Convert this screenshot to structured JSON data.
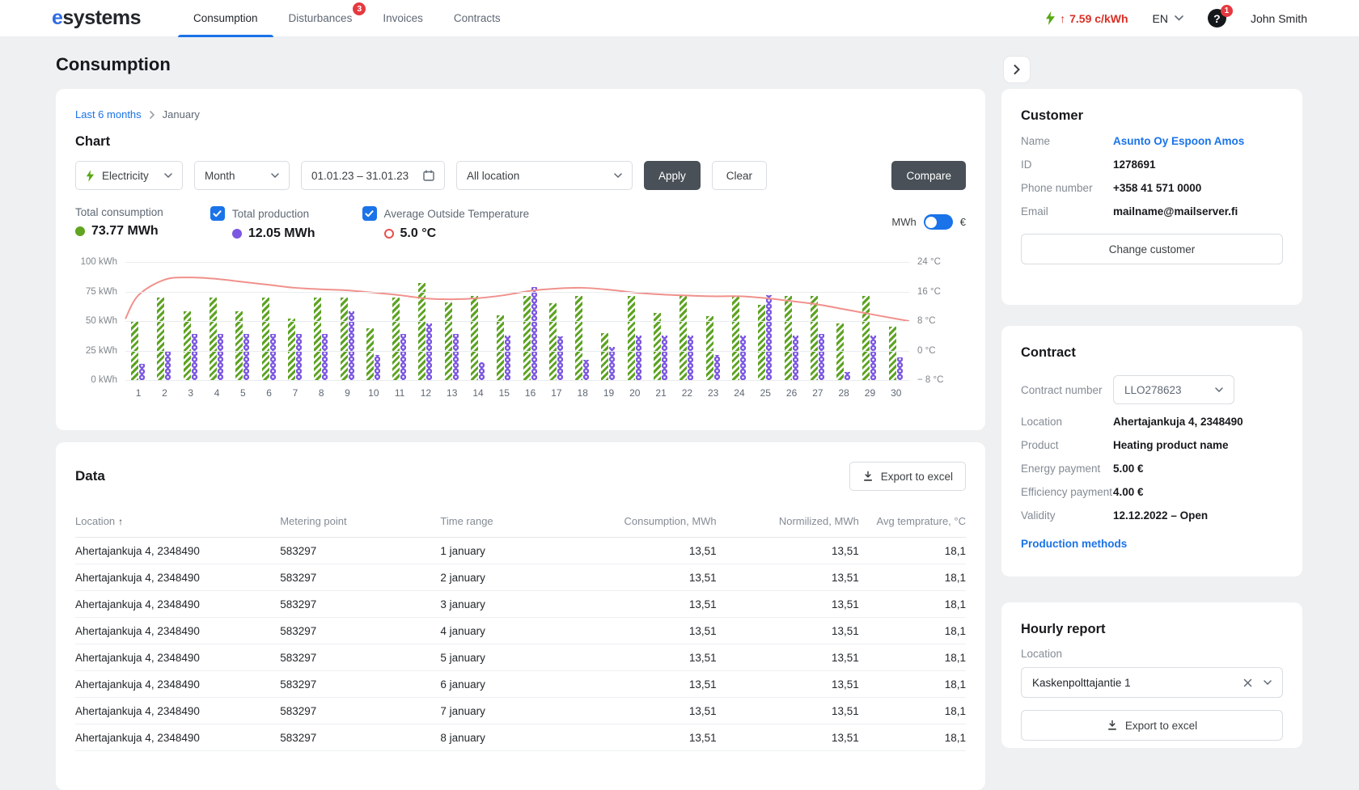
{
  "colors": {
    "accent": "#1a73e8",
    "consumption_green": "#61a41f",
    "production_purple": "#7b57e2",
    "temperature_red": "#e8504f",
    "temperature_line": "#f0918c",
    "alert_red": "#e5393f",
    "price_red": "#d93025",
    "button_dark": "#495057"
  },
  "brand": {
    "logo_first": "e",
    "logo_rest": "systems"
  },
  "nav": {
    "tabs": [
      {
        "label": "Consumption",
        "active": true
      },
      {
        "label": "Disturbances",
        "badge": "3"
      },
      {
        "label": "Invoices"
      },
      {
        "label": "Contracts"
      }
    ]
  },
  "topbar": {
    "price_arrow": "↑",
    "price": "7.59 c/kWh",
    "language": "EN",
    "help_glyph": "?",
    "help_badge": "1",
    "user": "John Smith"
  },
  "page": {
    "title": "Consumption"
  },
  "chart_card": {
    "breadcrumb": {
      "parent": "Last 6 months",
      "current": "January"
    },
    "heading": "Chart",
    "filters": {
      "type_value": "Electricity",
      "resolution_value": "Month",
      "date_range_value": "01.01.23 – 31.01.23",
      "location_value": "All location",
      "apply_label": "Apply",
      "clear_label": "Clear",
      "compare_label": "Compare"
    },
    "legend": {
      "items": [
        {
          "label": "Total consumption",
          "value": "73.77 MWh",
          "checkbox": false,
          "marker": "dot-green"
        },
        {
          "label": "Total production",
          "value": "12.05 MWh",
          "checkbox": true,
          "marker": "dot-purple"
        },
        {
          "label": "Average Outside Temperature",
          "value": "5.0 °C",
          "checkbox": true,
          "marker": "ring-red"
        }
      ],
      "unit_toggle": {
        "left": "MWh",
        "right": "€",
        "selected": "MWh"
      }
    }
  },
  "chart_data": {
    "type": "bar+line",
    "x": [
      1,
      2,
      3,
      4,
      5,
      6,
      7,
      8,
      9,
      10,
      11,
      12,
      13,
      14,
      15,
      16,
      17,
      18,
      19,
      20,
      21,
      22,
      23,
      24,
      25,
      26,
      27,
      28,
      29,
      30
    ],
    "series": [
      {
        "name": "Total consumption",
        "type": "bar",
        "unit": "kWh",
        "color": "#61a41f",
        "pattern": "diagonal-stripes",
        "values": [
          50,
          70,
          58,
          70,
          58,
          70,
          52,
          70,
          70,
          44,
          70,
          82,
          66,
          71,
          55,
          71,
          65,
          71,
          40,
          71,
          57,
          71,
          54,
          71,
          64,
          71,
          71,
          48,
          71,
          45
        ]
      },
      {
        "name": "Total production",
        "type": "bar",
        "unit": "kWh",
        "color": "#7b57e2",
        "pattern": "dot-chain",
        "values": [
          14,
          24,
          39,
          39,
          39,
          39,
          39,
          39,
          58,
          21,
          39,
          48,
          39,
          15,
          38,
          79,
          37,
          17,
          28,
          38,
          38,
          38,
          21,
          38,
          72,
          38,
          39,
          7,
          38,
          19
        ]
      },
      {
        "name": "Average Outside Temperature",
        "type": "line",
        "unit": "°C",
        "color": "#f0918c",
        "edge_start": 8.6,
        "values": [
          15.0,
          19.2,
          19.8,
          19.4,
          18.6,
          17.8,
          17.0,
          16.6,
          16.3,
          15.7,
          15.0,
          14.1,
          13.9,
          14.2,
          15.0,
          16.2,
          16.8,
          17.0,
          16.5,
          15.7,
          15.2,
          14.9,
          14.7,
          14.7,
          14.2,
          13.4,
          12.5,
          11.2,
          9.9,
          8.6
        ],
        "edge_end": 8.0
      }
    ],
    "y_left": {
      "labels": [
        "100 kWh",
        "75 kWh",
        "50 kWh",
        "25 kWh",
        "0 kWh"
      ],
      "min": 0,
      "max": 100
    },
    "y_right": {
      "labels": [
        "24 °C",
        "16 °C",
        "8 °C",
        "0 °C",
        "− 8 °C"
      ],
      "min": -8,
      "max": 24
    },
    "grid": true,
    "legend_position": "top"
  },
  "data_card": {
    "heading": "Data",
    "export_label": "Export to excel",
    "columns": [
      {
        "label": "Location",
        "sort": "↑"
      },
      {
        "label": "Metering point"
      },
      {
        "label": "Time range"
      },
      {
        "label": "Consumption, MWh",
        "align": "right"
      },
      {
        "label": "Normilized, MWh",
        "align": "right"
      },
      {
        "label": "Avg temprature, °C",
        "align": "right"
      }
    ],
    "rows": [
      [
        "Ahertajankuja 4, 2348490",
        "583297",
        "1 january",
        "13,51",
        "13,51",
        "18,1"
      ],
      [
        "Ahertajankuja 4, 2348490",
        "583297",
        "2 january",
        "13,51",
        "13,51",
        "18,1"
      ],
      [
        "Ahertajankuja 4, 2348490",
        "583297",
        "3 january",
        "13,51",
        "13,51",
        "18,1"
      ],
      [
        "Ahertajankuja 4, 2348490",
        "583297",
        "4 january",
        "13,51",
        "13,51",
        "18,1"
      ],
      [
        "Ahertajankuja 4, 2348490",
        "583297",
        "5 january",
        "13,51",
        "13,51",
        "18,1"
      ],
      [
        "Ahertajankuja 4, 2348490",
        "583297",
        "6 january",
        "13,51",
        "13,51",
        "18,1"
      ],
      [
        "Ahertajankuja 4, 2348490",
        "583297",
        "7 january",
        "13,51",
        "13,51",
        "18,1"
      ],
      [
        "Ahertajankuja 4, 2348490",
        "583297",
        "8 january",
        "13,51",
        "13,51",
        "18,1"
      ]
    ]
  },
  "sidebar": {
    "customer": {
      "heading": "Customer",
      "fields": [
        {
          "label": "Name",
          "value": "Asunto Oy Espoon Amos"
        },
        {
          "label": "ID",
          "value": "1278691"
        },
        {
          "label": "Phone number",
          "value": "+358 41 571 0000"
        },
        {
          "label": "Email",
          "value": "mailname@mailserver.fi"
        }
      ],
      "change_button": "Change customer"
    },
    "contract": {
      "heading": "Contract",
      "number_label": "Contract number",
      "number_value": "LLO278623",
      "fields": [
        {
          "label": "Location",
          "value": "Ahertajankuja 4, 2348490"
        },
        {
          "label": "Product",
          "value": "Heating product name"
        },
        {
          "label": "Energy payment",
          "value": "5.00 €"
        },
        {
          "label": "Efficiency payment",
          "value": "4.00 €"
        },
        {
          "label": "Validity",
          "value": "12.12.2022 – Open"
        }
      ],
      "link": "Production methods"
    },
    "hourly": {
      "heading": "Hourly report",
      "location_label": "Location",
      "location_value": "Kaskenpolttajantie 1",
      "export_label": "Export to excel"
    }
  }
}
